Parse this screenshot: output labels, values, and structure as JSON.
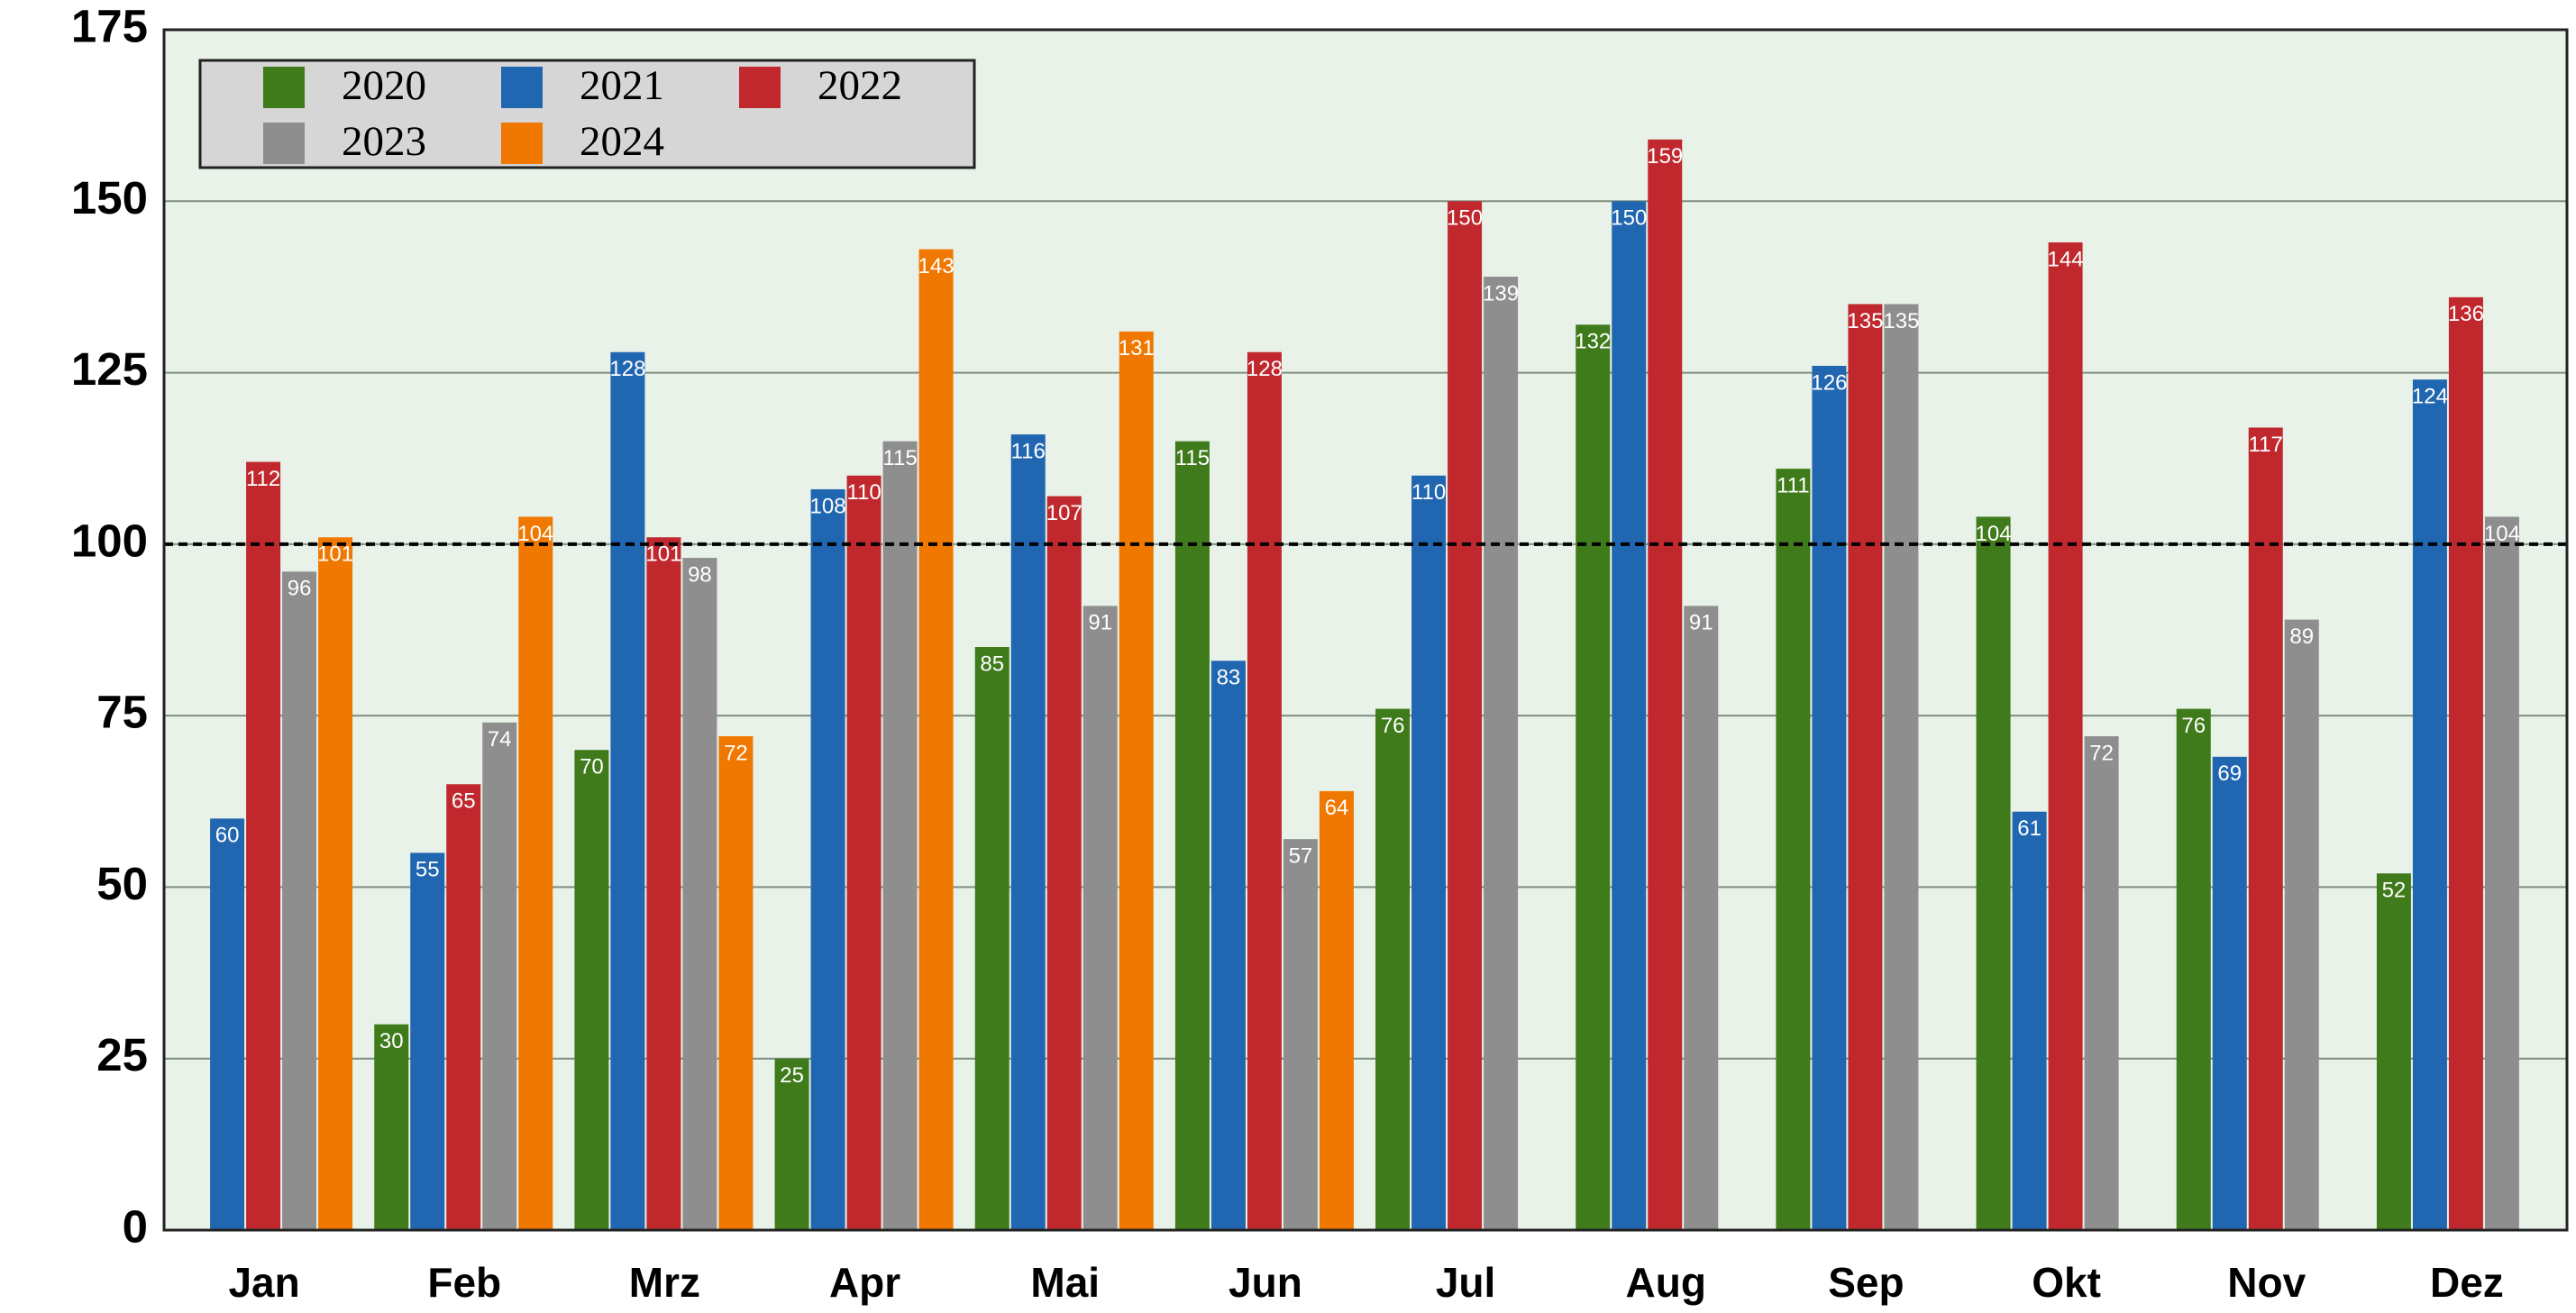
{
  "chart_data": {
    "type": "bar",
    "categories": [
      "Jan",
      "Feb",
      "Mrz",
      "Apr",
      "Mai",
      "Jun",
      "Jul",
      "Aug",
      "Sep",
      "Okt",
      "Nov",
      "Dez"
    ],
    "series": [
      {
        "name": "2020",
        "color": "#3f7a1b",
        "values": [
          null,
          30,
          70,
          25,
          85,
          115,
          76,
          132,
          111,
          104,
          76,
          52
        ]
      },
      {
        "name": "2021",
        "color": "#2166b0",
        "values": [
          60,
          55,
          128,
          108,
          116,
          83,
          110,
          150,
          126,
          61,
          69,
          124
        ]
      },
      {
        "name": "2022",
        "color": "#c0282e",
        "values": [
          112,
          65,
          101,
          110,
          107,
          128,
          150,
          159,
          135,
          144,
          117,
          136
        ]
      },
      {
        "name": "2023",
        "color": "#8e8e8e",
        "values": [
          96,
          74,
          98,
          115,
          91,
          57,
          139,
          91,
          135,
          72,
          89,
          104
        ]
      },
      {
        "name": "2024",
        "color": "#f07800",
        "values": [
          101,
          104,
          72,
          143,
          131,
          64,
          null,
          null,
          null,
          null,
          null,
          null
        ]
      }
    ],
    "ylim": [
      0,
      175
    ],
    "yticks": [
      0,
      25,
      50,
      75,
      100,
      125,
      150,
      175
    ],
    "grid": true,
    "reference_line": 100,
    "legend": "upper left"
  }
}
